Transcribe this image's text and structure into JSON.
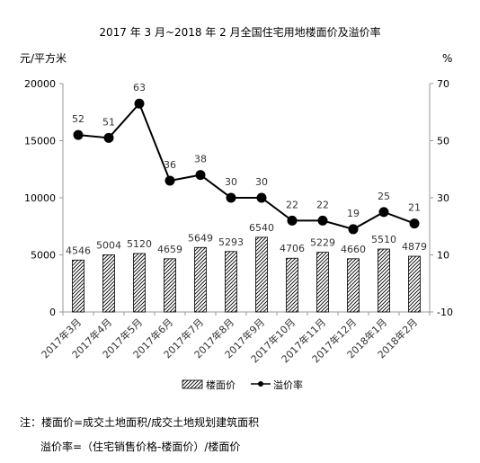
{
  "chart_data": {
    "type": "bar+line",
    "title": "2017 年 3 月~2018 年 2 月全国住宅用地楼面价及溢价率",
    "categories": [
      "2017年3月",
      "2017年4月",
      "2017年5月",
      "2017年6月",
      "2017年7月",
      "2017年8月",
      "2017年9月",
      "2017年10月",
      "2017年11月",
      "2017年12月",
      "2018年1月",
      "2018年2月"
    ],
    "series": [
      {
        "name": "楼面价",
        "type": "bar",
        "axis": "left",
        "pattern": "diagonal-hatch",
        "values": [
          4546,
          5004,
          5120,
          4659,
          5649,
          5293,
          6540,
          4706,
          5229,
          4660,
          5510,
          4879
        ]
      },
      {
        "name": "溢价率",
        "type": "line",
        "axis": "right",
        "marker": "filled-circle",
        "values": [
          52,
          51,
          63,
          36,
          38,
          30,
          30,
          22,
          22,
          19,
          25,
          21
        ]
      }
    ],
    "left_axis": {
      "unit_label": "元/平方米",
      "ylim": [
        0,
        20000
      ],
      "ticks": [
        0,
        5000,
        10000,
        15000,
        20000
      ]
    },
    "right_axis": {
      "unit_label": "%",
      "ylim": [
        -10,
        70
      ],
      "ticks": [
        -10,
        10,
        30,
        50,
        70
      ]
    },
    "grid": false,
    "legend_position": "bottom",
    "colors": {
      "line": "#000000",
      "bar_hatch": "#000000",
      "axis": "#999999"
    }
  },
  "notes": {
    "line1": "注：楼面价=成交土地面积/成交土地规划建筑面积",
    "line2": "溢价率=（住宅销售价格-楼面价）/楼面价"
  }
}
